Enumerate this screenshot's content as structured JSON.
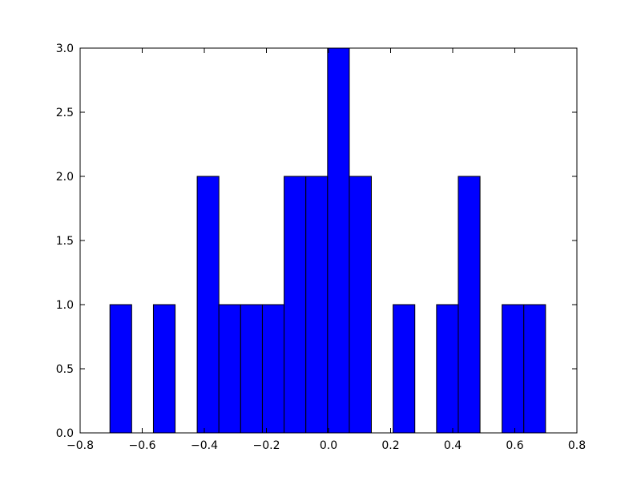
{
  "chart_data": {
    "type": "histogram",
    "bins": [
      -0.704,
      -0.634,
      -0.564,
      -0.494,
      -0.423,
      -0.353,
      -0.283,
      -0.213,
      -0.143,
      -0.073,
      -0.003,
      0.067,
      0.138,
      0.208,
      0.278,
      0.348,
      0.418,
      0.488,
      0.559,
      0.629,
      0.699
    ],
    "values": [
      1,
      0,
      1,
      0,
      2,
      1,
      1,
      1,
      2,
      2,
      3,
      2,
      0,
      1,
      0,
      1,
      2,
      0,
      1,
      1
    ],
    "color": "#0000ff",
    "xlim": [
      -0.8,
      0.8
    ],
    "xticks": [
      {
        "value": -0.8,
        "label": "−0.8"
      },
      {
        "value": -0.6,
        "label": "−0.6"
      },
      {
        "value": -0.4,
        "label": "−0.4"
      },
      {
        "value": -0.2,
        "label": "−0.2"
      },
      {
        "value": 0,
        "label": "0.0"
      },
      0.2,
      0.4,
      0.6,
      0.8
    ],
    "ylim": [
      0,
      3
    ],
    "yticks": [
      {
        "value": 0,
        "label": "0.0"
      },
      0.5,
      {
        "value": 1,
        "label": "1.0"
      },
      1.5,
      {
        "value": 2,
        "label": "2.0"
      },
      2.5,
      {
        "value": 3,
        "label": "3.0"
      }
    ],
    "grid": false
  }
}
